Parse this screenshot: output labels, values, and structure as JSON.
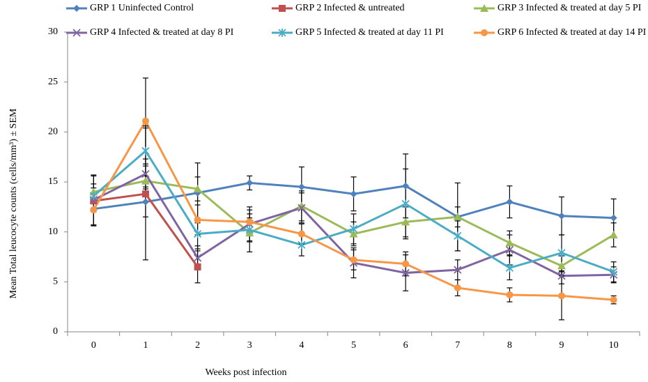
{
  "chart_data": {
    "type": "line",
    "x_label": "Weeks post infection",
    "y_label": "Mean Total leucocyte counts (cells/mm³) ± SEM",
    "x": [
      0,
      1,
      2,
      3,
      4,
      5,
      6,
      7,
      8,
      9,
      10
    ],
    "xlim": [
      -0.5,
      10.5
    ],
    "xticks": [
      0,
      1,
      2,
      3,
      4,
      5,
      6,
      7,
      8,
      9,
      10
    ],
    "ylim": [
      0,
      30
    ],
    "yticks": [
      0,
      5,
      10,
      15,
      20,
      25,
      30
    ],
    "grid": false,
    "series": [
      {
        "name": "GRP 1 Uninfected Control",
        "color": "#4f81bd",
        "marker": "diamond",
        "values": [
          12.3,
          13.0,
          13.9,
          14.9,
          14.5,
          13.8,
          14.6,
          11.5,
          13.0,
          11.6,
          11.4
        ],
        "errors": [
          1.6,
          1.5,
          3.0,
          0.7,
          2.0,
          1.7,
          3.2,
          1.0,
          1.6,
          1.9,
          1.9
        ]
      },
      {
        "name": "GRP 2 Infected & untreated",
        "color": "#c0504d",
        "marker": "square",
        "values": [
          13.1,
          13.8,
          6.5,
          null,
          null,
          null,
          null,
          null,
          null,
          null,
          null
        ],
        "errors": [
          2.5,
          6.6,
          1.6,
          null,
          null,
          null,
          null,
          null,
          null,
          null,
          null
        ]
      },
      {
        "name": "GRP 3 Infected & treated at day 5 PI",
        "color": "#9bbb59",
        "marker": "triangle",
        "values": [
          14.0,
          15.1,
          14.3,
          9.9,
          12.6,
          9.8,
          11.0,
          11.5,
          8.9,
          6.6,
          9.7
        ],
        "errors": [
          1.7,
          1.5,
          1.2,
          1.9,
          1.5,
          1.2,
          1.5,
          3.4,
          1.2,
          1.0,
          1.2
        ]
      },
      {
        "name": "GRP 4 Infected & treated at day 8 PI",
        "color": "#8064a2",
        "marker": "x",
        "values": [
          13.2,
          15.8,
          7.4,
          10.8,
          12.4,
          6.9,
          5.9,
          6.2,
          8.2,
          5.6,
          5.7
        ],
        "errors": [
          1.2,
          1.5,
          1.2,
          1.7,
          1.5,
          1.5,
          1.8,
          1.0,
          1.5,
          0.8,
          0.8
        ]
      },
      {
        "name": "GRP 5 Infected & treated at day 11 PI",
        "color": "#4bacc6",
        "marker": "star",
        "values": [
          13.6,
          18.1,
          9.8,
          10.2,
          8.7,
          10.3,
          12.8,
          9.6,
          6.4,
          7.9,
          6.0
        ],
        "errors": [
          1.2,
          2.5,
          1.5,
          1.2,
          1.1,
          1.5,
          3.5,
          1.5,
          1.2,
          1.8,
          1.0
        ]
      },
      {
        "name": "GRP 6 Infected & treated at day 14 PI",
        "color": "#f79646",
        "marker": "circle",
        "values": [
          12.2,
          21.1,
          11.2,
          11.0,
          9.8,
          7.2,
          6.8,
          4.4,
          3.7,
          3.6,
          3.2
        ],
        "errors": [
          1.5,
          4.3,
          1.5,
          1.2,
          1.0,
          1.0,
          1.2,
          0.8,
          0.7,
          2.4,
          0.4
        ]
      }
    ]
  }
}
